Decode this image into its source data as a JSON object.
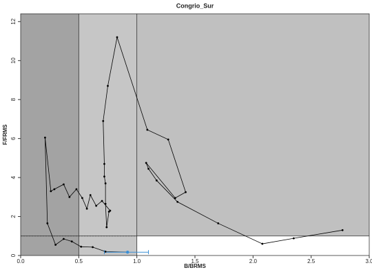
{
  "chart_data": {
    "type": "scatter",
    "title": "Congrio_Sur",
    "x_label": "B/BRMS",
    "y_label": "F/FRMS",
    "x": [
      2.77,
      2.35,
      2.08,
      1.7,
      1.35,
      1.17,
      1.1,
      1.08,
      1.33,
      1.42,
      1.27,
      1.09,
      0.83,
      0.75,
      0.71,
      0.72,
      0.72,
      0.73,
      0.73,
      0.74,
      0.76,
      0.77,
      0.7,
      0.65,
      0.6,
      0.57,
      0.53,
      0.48,
      0.42,
      0.37,
      0.29,
      0.26,
      0.21,
      0.23,
      0.3,
      0.37,
      0.44,
      0.52,
      0.62,
      0.73,
      0.92
    ],
    "y": [
      1.3,
      0.88,
      0.6,
      1.65,
      2.75,
      3.85,
      4.45,
      4.75,
      2.95,
      3.25,
      5.95,
      6.45,
      11.2,
      8.7,
      6.9,
      4.7,
      4.05,
      3.7,
      2.65,
      1.45,
      2.25,
      2.3,
      2.8,
      2.55,
      3.1,
      2.4,
      2.95,
      3.4,
      3.0,
      3.65,
      3.4,
      3.3,
      6.05,
      1.65,
      0.55,
      0.85,
      0.72,
      0.45,
      0.43,
      0.2,
      0.17
    ],
    "last_point_x_interval": [
      0.72,
      1.1
    ],
    "color": "#000000",
    "last_point_color": "#3a8fd6",
    "reference_x": [
      0.5,
      1.0
    ],
    "reference_y": 1.0,
    "region_colors": [
      "#a3a3a3",
      "#c6c6c6",
      "#c0c0c0"
    ],
    "xlim": [
      0,
      3
    ],
    "ylim": [
      0,
      12.4
    ],
    "xticks": [
      {
        "value": 0,
        "label": "0.0"
      },
      0.5,
      {
        "value": 1,
        "label": "1.0"
      },
      1.5,
      {
        "value": 2,
        "label": "2.0"
      },
      2.5,
      {
        "value": 3,
        "label": "3.0"
      }
    ],
    "yticks": [
      0,
      2,
      4,
      6,
      8,
      10,
      12
    ]
  }
}
